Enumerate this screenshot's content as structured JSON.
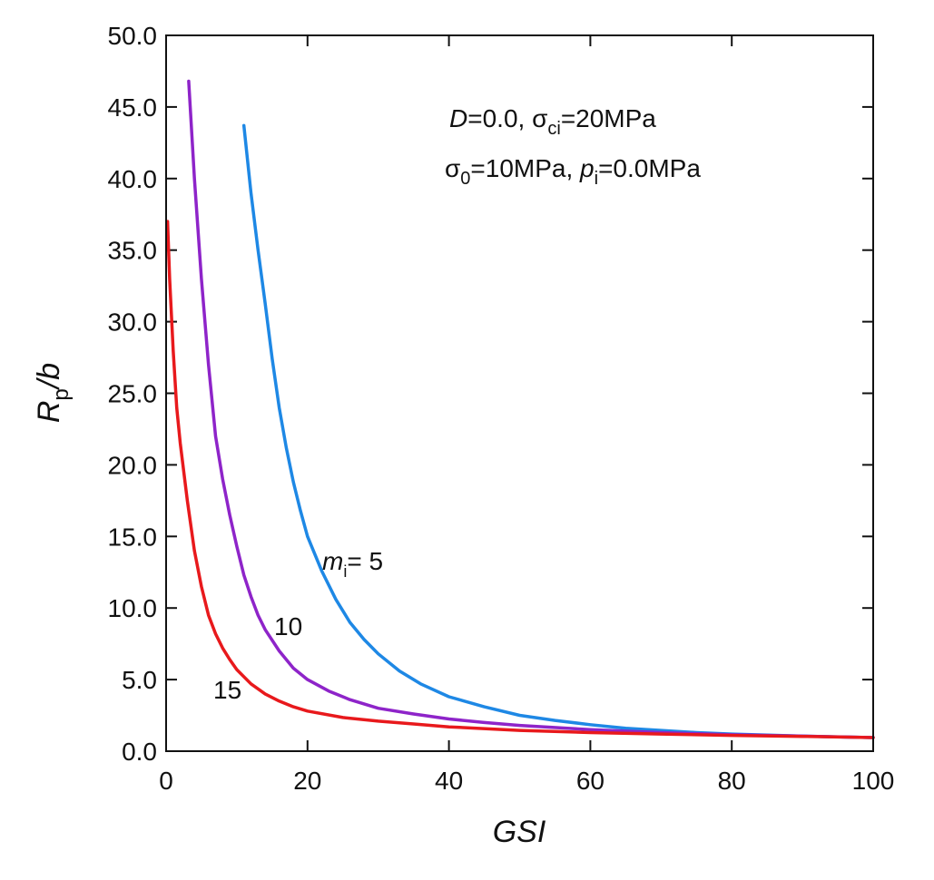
{
  "chart_data": {
    "type": "line",
    "title": "",
    "xlabel": "GSI",
    "ylabel_main": "R",
    "ylabel_sub": "p",
    "ylabel_tail": "/b",
    "xlim": [
      0,
      100
    ],
    "ylim": [
      0,
      50
    ],
    "x_ticks": [
      0,
      20,
      40,
      60,
      80,
      100
    ],
    "x_tick_labels": [
      "0",
      "20",
      "40",
      "60",
      "80",
      "100"
    ],
    "y_ticks": [
      0,
      5,
      10,
      15,
      20,
      25,
      30,
      35,
      40,
      45,
      50
    ],
    "y_tick_labels": [
      "0.0",
      "5.0",
      "10.0",
      "15.0",
      "20.0",
      "25.0",
      "30.0",
      "35.0",
      "40.0",
      "45.0",
      "50.0"
    ],
    "grid": false,
    "annotation": {
      "line1": {
        "D": "D",
        "eq": "=0.0, ",
        "sigma": "σ",
        "sub": "ci",
        "rest": "=20MPa"
      },
      "line2": {
        "sigma": "σ",
        "sub": "0",
        "mid": "=10MPa, ",
        "p": "p",
        "psub": "i",
        "rest": "=0.0MPa"
      }
    },
    "series": [
      {
        "name": "mi=5",
        "label_m": "m",
        "label_sub": "i",
        "label_rest": "= 5",
        "color": "#1e88e5",
        "points": [
          [
            11,
            43.7
          ],
          [
            12,
            39.0
          ],
          [
            13,
            35.0
          ],
          [
            14,
            31.3
          ],
          [
            15,
            27.4
          ],
          [
            16,
            24.0
          ],
          [
            17,
            21.2
          ],
          [
            18,
            18.8
          ],
          [
            19,
            16.8
          ],
          [
            20,
            15.0
          ],
          [
            22,
            12.6
          ],
          [
            24,
            10.6
          ],
          [
            26,
            9.0
          ],
          [
            28,
            7.8
          ],
          [
            30,
            6.8
          ],
          [
            33,
            5.6
          ],
          [
            36,
            4.7
          ],
          [
            40,
            3.8
          ],
          [
            45,
            3.1
          ],
          [
            50,
            2.5
          ],
          [
            55,
            2.15
          ],
          [
            60,
            1.85
          ],
          [
            65,
            1.6
          ],
          [
            70,
            1.45
          ],
          [
            75,
            1.3
          ],
          [
            80,
            1.2
          ],
          [
            85,
            1.12
          ],
          [
            90,
            1.05
          ],
          [
            95,
            1.0
          ],
          [
            100,
            0.95
          ]
        ]
      },
      {
        "name": "mi=10",
        "label_m": "",
        "label_sub": "",
        "label_rest": "10",
        "color": "#8e24c9",
        "points": [
          [
            3.2,
            46.8
          ],
          [
            4,
            40.0
          ],
          [
            5,
            33.0
          ],
          [
            6,
            27.0
          ],
          [
            7,
            22.0
          ],
          [
            8,
            19.0
          ],
          [
            9,
            16.5
          ],
          [
            10,
            14.3
          ],
          [
            11,
            12.3
          ],
          [
            12,
            10.8
          ],
          [
            13,
            9.5
          ],
          [
            14,
            8.5
          ],
          [
            16,
            7.0
          ],
          [
            18,
            5.8
          ],
          [
            20,
            5.0
          ],
          [
            23,
            4.2
          ],
          [
            26,
            3.6
          ],
          [
            30,
            3.0
          ],
          [
            35,
            2.6
          ],
          [
            40,
            2.25
          ],
          [
            45,
            2.0
          ],
          [
            50,
            1.8
          ],
          [
            60,
            1.5
          ],
          [
            70,
            1.3
          ],
          [
            80,
            1.15
          ],
          [
            90,
            1.05
          ],
          [
            100,
            0.95
          ]
        ]
      },
      {
        "name": "mi=15",
        "label_m": "",
        "label_sub": "",
        "label_rest": "15",
        "color": "#e8191c",
        "points": [
          [
            0.2,
            37.0
          ],
          [
            0.5,
            33.0
          ],
          [
            1,
            28.0
          ],
          [
            1.5,
            24.0
          ],
          [
            2,
            21.5
          ],
          [
            3,
            17.5
          ],
          [
            4,
            14.0
          ],
          [
            5,
            11.5
          ],
          [
            6,
            9.5
          ],
          [
            7,
            8.2
          ],
          [
            8,
            7.2
          ],
          [
            9,
            6.4
          ],
          [
            10,
            5.7
          ],
          [
            12,
            4.7
          ],
          [
            14,
            4.0
          ],
          [
            16,
            3.5
          ],
          [
            18,
            3.1
          ],
          [
            20,
            2.8
          ],
          [
            25,
            2.35
          ],
          [
            30,
            2.1
          ],
          [
            35,
            1.9
          ],
          [
            40,
            1.7
          ],
          [
            50,
            1.45
          ],
          [
            60,
            1.3
          ],
          [
            70,
            1.2
          ],
          [
            80,
            1.1
          ],
          [
            90,
            1.03
          ],
          [
            100,
            0.95
          ]
        ]
      }
    ]
  }
}
